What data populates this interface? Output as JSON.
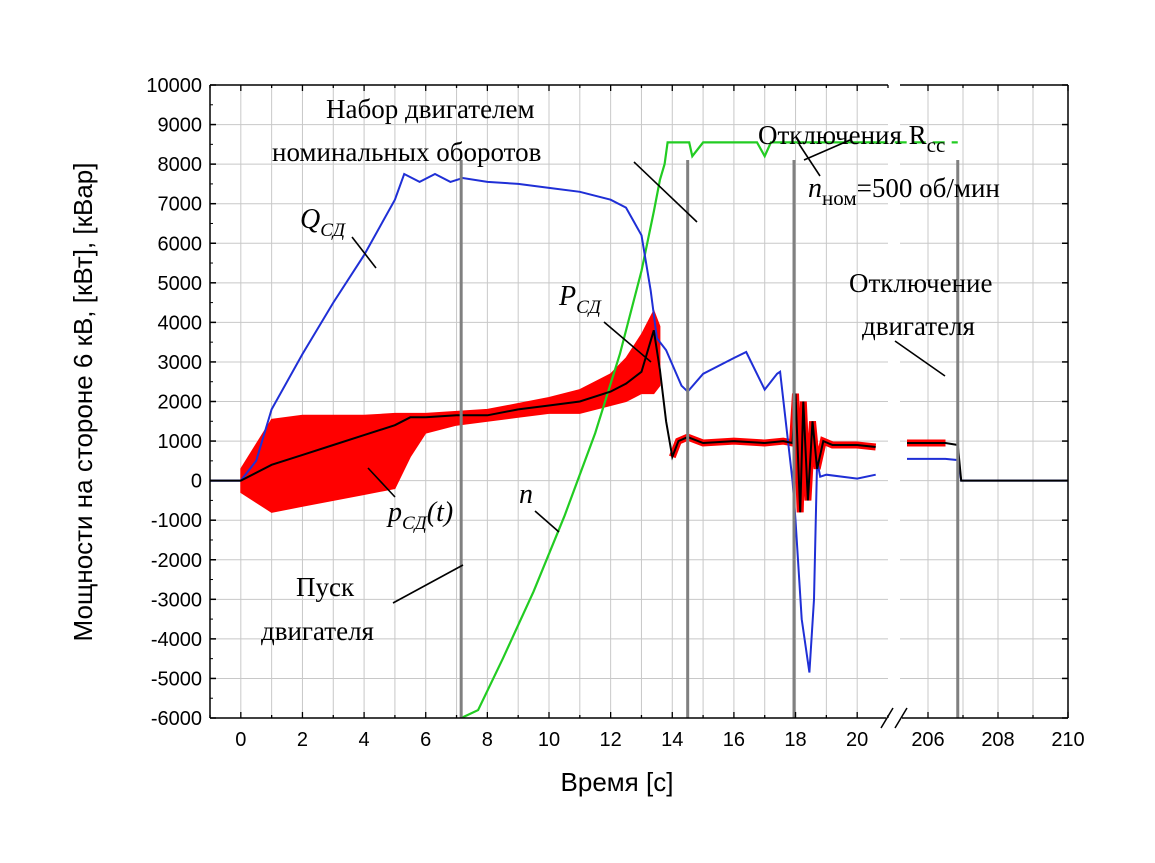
{
  "chart_data": {
    "type": "line",
    "title": "",
    "xlabel": "Время [с]",
    "ylabel": "Мощности на стороне 6 кВ, [кВт], [кВар]",
    "ylim": [
      -6000,
      10000
    ],
    "yticks": [
      -6000,
      -5000,
      -4000,
      -3000,
      -2000,
      -1000,
      0,
      1000,
      2000,
      3000,
      4000,
      5000,
      6000,
      7000,
      8000,
      9000,
      10000
    ],
    "x_segments": [
      {
        "range": [
          -1,
          21
        ],
        "ticks": [
          0,
          2,
          4,
          6,
          8,
          10,
          12,
          14,
          16,
          18,
          20
        ]
      },
      {
        "range": [
          205.2,
          210
        ],
        "ticks": [
          206,
          208,
          210
        ]
      }
    ],
    "axis_break": "between 21 and 205.2",
    "grid": true,
    "colors": {
      "Q": "#1f2fd6",
      "p_fill": "#ff0000",
      "P": "#000000",
      "n": "#22cc22",
      "markers": "#808080"
    },
    "vertical_markers_x": [
      7.15,
      14.5,
      17.95,
      206.85
    ],
    "series": [
      {
        "name": "Q_СД",
        "color": "#1f2fd6",
        "x": [
          -1,
          0,
          0.5,
          1,
          2,
          3,
          4,
          5,
          5.3,
          5.8,
          6.3,
          6.8,
          7.2,
          8,
          9,
          10,
          11,
          12,
          12.5,
          13,
          13.3,
          13.5,
          13.8,
          14.3,
          14.5,
          15,
          16,
          16.4,
          17,
          17.4,
          17.5,
          17.9,
          18,
          18.2,
          18.45,
          18.6,
          18.7,
          18.8,
          19,
          20,
          20.6,
          205.4,
          206.5,
          206.85,
          206.95,
          210
        ],
        "y": [
          0,
          0,
          500,
          1800,
          3200,
          4500,
          5700,
          7100,
          7750,
          7550,
          7750,
          7550,
          7650,
          7550,
          7500,
          7400,
          7300,
          7100,
          6900,
          6200,
          4800,
          3600,
          3300,
          2400,
          2250,
          2700,
          3100,
          3250,
          2300,
          2700,
          2750,
          0,
          -1000,
          -3500,
          -4850,
          -3000,
          500,
          100,
          150,
          50,
          150,
          550,
          550,
          520,
          0,
          0
        ]
      },
      {
        "name": "P_СД",
        "color": "#000000",
        "x": [
          -1,
          0,
          1,
          2,
          3,
          4,
          5,
          5.5,
          6,
          7,
          8,
          9,
          10,
          11,
          12,
          12.5,
          13,
          13.4,
          13.6,
          13.8,
          14,
          14.2,
          14.5,
          15,
          16,
          17,
          17.6,
          17.9,
          18,
          18.15,
          18.25,
          18.4,
          18.55,
          18.7,
          18.9,
          19.2,
          20,
          20.6,
          205.4,
          206.5,
          206.85,
          206.95,
          210
        ],
        "y": [
          0,
          0,
          400,
          650,
          900,
          1150,
          1400,
          1600,
          1600,
          1650,
          1650,
          1800,
          1900,
          2000,
          2250,
          2450,
          2750,
          3800,
          2800,
          1500,
          600,
          1000,
          1100,
          950,
          1000,
          950,
          1000,
          950,
          2200,
          -800,
          2000,
          -500,
          1500,
          300,
          1000,
          900,
          900,
          850,
          950,
          950,
          900,
          0,
          0
        ]
      },
      {
        "name": "n",
        "color": "#22cc22",
        "unit_note": "ном=500 об/мин",
        "x": [
          7.15,
          7.7,
          8.5,
          9.5,
          10.5,
          11.5,
          12.3,
          13,
          13.4,
          13.6,
          13.75,
          13.85,
          14.3,
          14.55,
          14.65,
          15,
          16.5,
          16.75,
          17,
          17.2,
          17.9,
          18,
          20.6
        ],
        "y": [
          -6000,
          -5800,
          -4500,
          -2800,
          -900,
          1200,
          3200,
          5300,
          6800,
          7600,
          8000,
          8550,
          8550,
          8550,
          8200,
          8550,
          8550,
          8550,
          8200,
          8550,
          8550,
          8550,
          8550
        ]
      },
      {
        "name": "p_СД(t)",
        "color": "#ff0000",
        "type": "envelope",
        "x": [
          0,
          1,
          2,
          3,
          4,
          5,
          5.5,
          6,
          7,
          8,
          9,
          10,
          11,
          12,
          12.5,
          13,
          13.4,
          13.6
        ],
        "upper": [
          300,
          1550,
          1650,
          1650,
          1650,
          1700,
          1700,
          1700,
          1750,
          1800,
          1950,
          2100,
          2300,
          2700,
          3100,
          3700,
          4300,
          3900
        ],
        "lower": [
          -300,
          -800,
          -650,
          -500,
          -350,
          -200,
          600,
          1200,
          1400,
          1500,
          1600,
          1700,
          1700,
          1900,
          2000,
          2200,
          2200,
          2400
        ]
      }
    ],
    "annotations": [
      {
        "text": "Набор двигателем"
      },
      {
        "text": "номинальных оборотов"
      },
      {
        "text": "Отключения R",
        "sub": "сс"
      },
      {
        "text": "n",
        "sub": "ном",
        "tail": "=500 об/мин"
      },
      {
        "text": "Q",
        "sub": "СД"
      },
      {
        "text": "P",
        "sub": "СД"
      },
      {
        "text": "Отключение"
      },
      {
        "text": "двигателя"
      },
      {
        "text": "p",
        "sub": "СД",
        "tail": "(t)"
      },
      {
        "text": "n"
      },
      {
        "text": "Пуск"
      },
      {
        "text": "двигателя"
      }
    ]
  }
}
